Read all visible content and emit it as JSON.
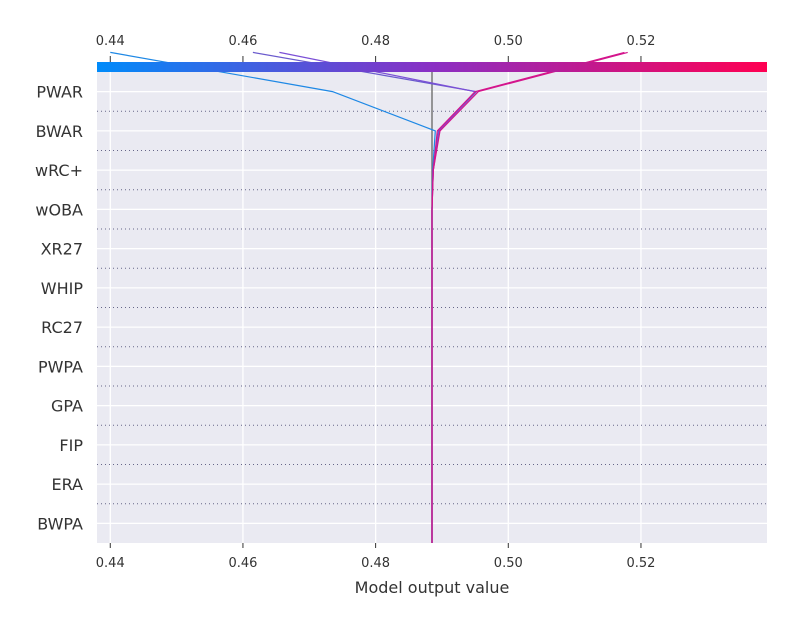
{
  "chart_data": {
    "type": "decision_plot",
    "xlabel": "Model output value",
    "xlim": [
      0.438,
      0.539
    ],
    "x_ticks": [
      0.44,
      0.46,
      0.48,
      0.5,
      0.52
    ],
    "x_tick_labels": [
      "0.44",
      "0.46",
      "0.48",
      "0.50",
      "0.52"
    ],
    "base_value": 0.4885,
    "features": [
      "PWAR",
      "BWAR",
      "wRC+",
      "wOBA",
      "XR27",
      "WHIP",
      "RC27",
      "PWPA",
      "GPA",
      "FIP",
      "ERA",
      "BWPA"
    ],
    "colorbar": {
      "from": "#008bfa",
      "mid": "#8a2fc4",
      "to": "#ff0052"
    },
    "grid": true,
    "series": [
      {
        "color": "#1e88e5",
        "values": [
          0.4885,
          0.4885,
          0.4885,
          0.4885,
          0.4885,
          0.4885,
          0.4885,
          0.4885,
          0.4885,
          0.4885,
          0.4886,
          0.489,
          0.4735,
          0.44
        ]
      },
      {
        "color": "#6a5acd",
        "values": [
          0.4885,
          0.4885,
          0.4885,
          0.4885,
          0.4885,
          0.4885,
          0.4885,
          0.4885,
          0.4885,
          0.4885,
          0.4886,
          0.4895,
          0.4952,
          0.4615
        ]
      },
      {
        "color": "#7b4fd6",
        "values": [
          0.4885,
          0.4885,
          0.4885,
          0.4885,
          0.4885,
          0.4885,
          0.4885,
          0.4885,
          0.4885,
          0.4885,
          0.4887,
          0.4896,
          0.495,
          0.4655
        ]
      },
      {
        "color": "#d4148c",
        "values": [
          0.4885,
          0.4885,
          0.4885,
          0.4885,
          0.4885,
          0.4885,
          0.4885,
          0.4885,
          0.4885,
          0.4885,
          0.4887,
          0.4893,
          0.495,
          0.5175
        ]
      },
      {
        "color": "#d4148c",
        "values": [
          0.4885,
          0.4885,
          0.4885,
          0.4885,
          0.4885,
          0.4885,
          0.4885,
          0.4885,
          0.4885,
          0.4885,
          0.4887,
          0.4897,
          0.4955,
          0.518
        ]
      }
    ]
  }
}
